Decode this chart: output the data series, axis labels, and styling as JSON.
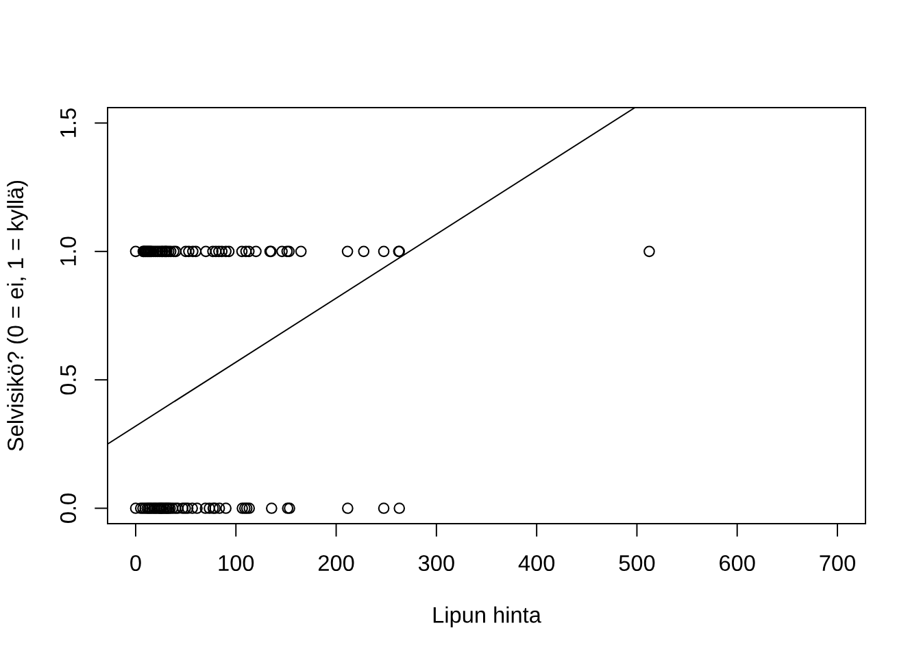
{
  "chart_data": {
    "type": "scatter",
    "xlabel": "Lipun hinta",
    "ylabel": "Selvisikö? (0 = ei, 1 = kyllä)",
    "xlim": [
      -28,
      728
    ],
    "ylim": [
      -0.06,
      1.56
    ],
    "xticks": [
      0,
      100,
      200,
      300,
      400,
      500,
      600,
      700
    ],
    "yticks": [
      {
        "value": 0,
        "label": "0.0"
      },
      {
        "value": 0.5,
        "label": "0.5"
      },
      {
        "value": 1,
        "label": "1.0"
      },
      {
        "value": 1.5,
        "label": "1.5"
      }
    ],
    "grid": false,
    "series": [
      {
        "color": "#000000",
        "marker": "circle",
        "x": [
          0,
          7.5,
          8,
          9,
          10,
          11,
          12,
          13,
          14,
          15,
          16,
          18,
          20,
          22,
          24,
          26,
          27,
          29,
          30,
          31,
          33,
          35,
          38,
          40,
          50,
          53,
          57,
          60,
          70,
          77,
          80,
          83,
          86,
          90,
          93,
          106,
          110,
          113,
          120,
          134,
          135,
          146,
          151,
          153,
          164.9,
          211.3,
          227.5,
          247.5,
          262.4,
          263,
          512.3,
          0,
          5,
          7.25,
          9.5,
          11.5,
          13,
          14.5,
          16.1,
          18,
          19.5,
          21,
          23,
          24.15,
          25.5,
          26,
          27.7,
          29,
          30.7,
          31.4,
          33,
          34.4,
          36.75,
          39.7,
          42,
          46.9,
          49.5,
          52,
          56.5,
          61.2,
          69.6,
          73.5,
          77.3,
          79.2,
          83.5,
          90,
          106.4,
          108.9,
          110.9,
          113.3,
          135.6,
          151.6,
          153.5,
          211.5,
          247.5,
          263
        ],
        "values": [
          1,
          1,
          1,
          1,
          1,
          1,
          1,
          1,
          1,
          1,
          1,
          1,
          1,
          1,
          1,
          1,
          1,
          1,
          1,
          1,
          1,
          1,
          1,
          1,
          1,
          1,
          1,
          1,
          1,
          1,
          1,
          1,
          1,
          1,
          1,
          1,
          1,
          1,
          1,
          1,
          1,
          1,
          1,
          1,
          1,
          1,
          1,
          1,
          1,
          1,
          1,
          0,
          0,
          0,
          0,
          0,
          0,
          0,
          0,
          0,
          0,
          0,
          0,
          0,
          0,
          0,
          0,
          0,
          0,
          0,
          0,
          0,
          0,
          0,
          0,
          0,
          0,
          0,
          0,
          0,
          0,
          0,
          0,
          0,
          0,
          0,
          0,
          0,
          0,
          0,
          0,
          0,
          0,
          0,
          0,
          0
        ]
      },
      {
        "type": "line",
        "color": "#000000",
        "line_style": "solid",
        "x": [
          -28,
          498
        ],
        "values": [
          0.25,
          1.56
        ]
      }
    ]
  }
}
